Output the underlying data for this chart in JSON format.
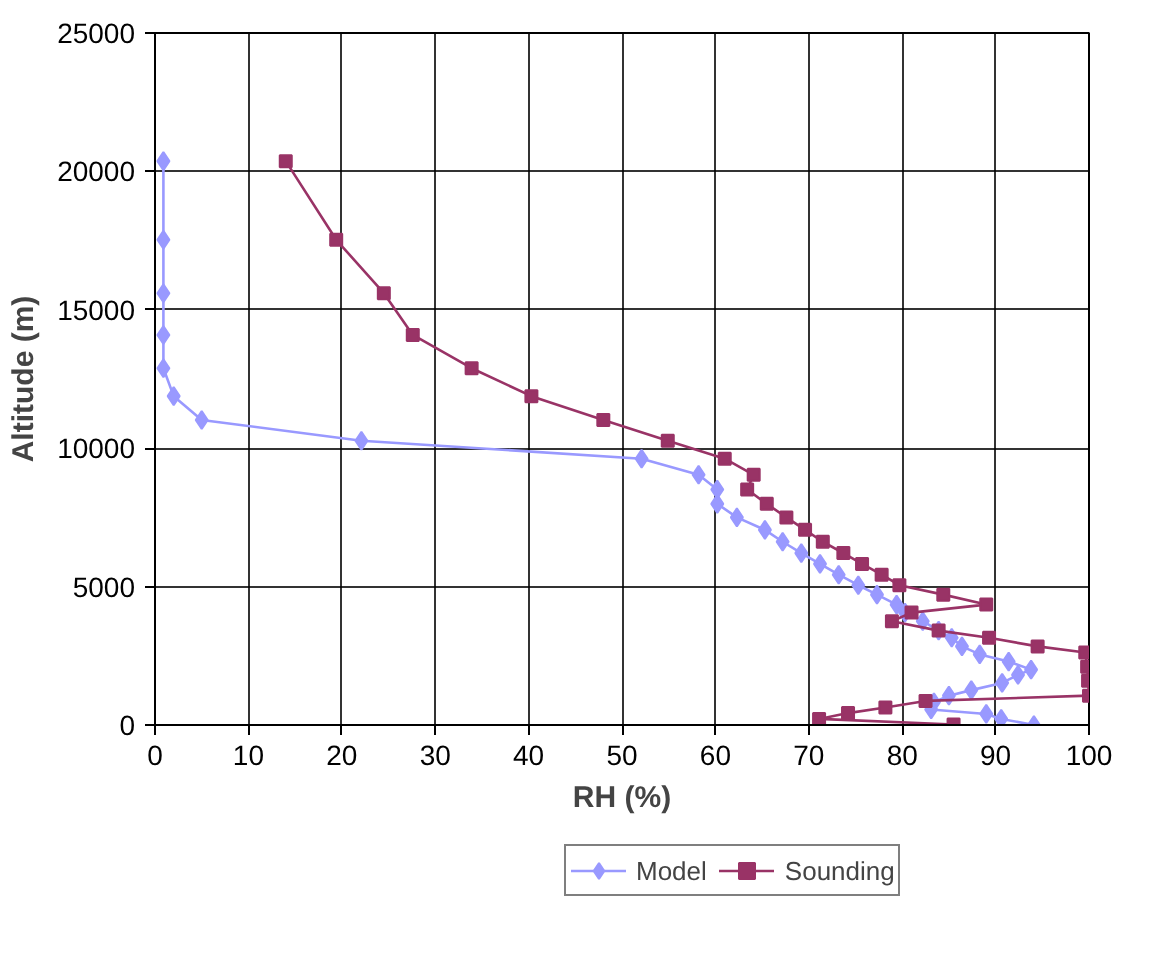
{
  "chart_data": {
    "type": "line",
    "xlabel": "RH (%)",
    "ylabel": "Altitude (m)",
    "xlim": [
      0,
      100
    ],
    "ylim": [
      0,
      25000
    ],
    "xticks": [
      0,
      10,
      20,
      30,
      40,
      50,
      60,
      70,
      80,
      90,
      100
    ],
    "yticks": [
      0,
      5000,
      10000,
      15000,
      20000,
      25000
    ],
    "grid": true,
    "legend": "bottom",
    "line_style": "solid",
    "series": [
      {
        "name": "Model",
        "color": "#9999ff",
        "marker": "diamond",
        "x": [
          0.9,
          0.9,
          0.9,
          0.9,
          0.9,
          2.0,
          5.0,
          22.1,
          52.1,
          58.2,
          60.2,
          60.2,
          62.3,
          65.3,
          67.2,
          69.2,
          71.2,
          73.2,
          75.3,
          77.3,
          79.4,
          80.3,
          82.2,
          83.9,
          85.3,
          86.4,
          88.3,
          91.4,
          93.8,
          92.4,
          90.7,
          87.4,
          85.0,
          83.4,
          83.1,
          89.0,
          90.6,
          94.1
        ],
        "values": [
          20370,
          17530,
          15600,
          14090,
          12890,
          11880,
          11020,
          10270,
          9620,
          9040,
          8510,
          7990,
          7500,
          7050,
          6620,
          6210,
          5820,
          5430,
          5050,
          4710,
          4350,
          4060,
          3750,
          3410,
          3150,
          2840,
          2550,
          2290,
          2000,
          1810,
          1520,
          1260,
          1060,
          820,
          560,
          400,
          220,
          0
        ]
      },
      {
        "name": "Sounding",
        "color": "#993366",
        "marker": "square",
        "x": [
          14.0,
          19.4,
          24.5,
          27.6,
          33.9,
          40.3,
          48.0,
          54.9,
          61.0,
          64.1,
          63.4,
          65.5,
          67.6,
          69.6,
          71.5,
          73.7,
          75.7,
          77.8,
          79.7,
          84.4,
          89.0,
          81.0,
          78.9,
          83.9,
          89.3,
          94.5,
          99.6,
          99.8,
          99.9,
          100,
          82.5,
          78.2,
          74.2,
          71.1,
          85.5
        ],
        "values": [
          20370,
          17530,
          15600,
          14090,
          12890,
          11880,
          11020,
          10270,
          9620,
          9040,
          8510,
          7990,
          7500,
          7050,
          6620,
          6210,
          5820,
          5430,
          5050,
          4710,
          4350,
          4060,
          3750,
          3410,
          3150,
          2840,
          2620,
          2100,
          1600,
          1060,
          870,
          630,
          430,
          220,
          20
        ]
      }
    ]
  }
}
